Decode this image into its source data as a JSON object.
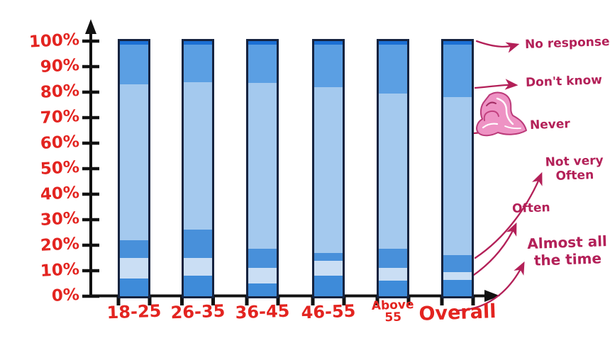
{
  "page": {
    "background": "#ffffff"
  },
  "chart_data": {
    "type": "stacked-bar",
    "title": "",
    "xlabel": "",
    "ylabel": "",
    "categories": [
      "18-25",
      "26-35",
      "36-45",
      "46-55",
      "Above 55",
      "Overall"
    ],
    "x_tick_label_lines": [
      [
        "18-25"
      ],
      [
        "26-35"
      ],
      [
        "36-45"
      ],
      [
        "46-55"
      ],
      [
        "Above",
        "55"
      ],
      [
        "Overall"
      ]
    ],
    "x_tick_label_style": [
      "normal",
      "normal",
      "normal",
      "normal",
      "small",
      "big"
    ],
    "ylim": [
      0,
      100
    ],
    "y_tick_labels": [
      "0%",
      "10%",
      "20%",
      "30%",
      "40%",
      "50%",
      "60%",
      "70%",
      "80%",
      "90%",
      "100%"
    ],
    "grid": false,
    "legend_position": "right-annotations",
    "series": [
      {
        "name": "Almost all the time",
        "color": "#3e8bd9",
        "values": [
          7,
          8,
          5,
          8,
          6,
          6.5
        ]
      },
      {
        "name": "Often",
        "color": "#cadef4",
        "values": [
          8,
          7,
          6,
          6,
          5,
          3
        ]
      },
      {
        "name": "Not very Often",
        "color": "#4890da",
        "values": [
          7,
          11,
          7.5,
          3,
          7.5,
          6.5
        ]
      },
      {
        "name": "Never",
        "color": "#a4c9ee",
        "values": [
          61,
          58,
          65,
          65,
          61,
          62
        ]
      },
      {
        "name": "Don't know",
        "color": "#5b9fe3",
        "values": [
          15.5,
          14.5,
          15,
          16.5,
          19,
          20.5
        ]
      },
      {
        "name": "No response",
        "color": "#1b6fd4",
        "values": [
          1.5,
          1.5,
          1.5,
          1.5,
          1.5,
          1.5
        ]
      }
    ],
    "bar_outline_color": "#16233f",
    "axis_color": "#111111",
    "tick_label_color": "#e32420"
  },
  "annotations": {
    "color": "#b32058",
    "labels": [
      {
        "id": "no-response",
        "lines": [
          "No response"
        ]
      },
      {
        "id": "dont-know",
        "lines": [
          "Don't know"
        ]
      },
      {
        "id": "never",
        "lines": [
          "Never"
        ]
      },
      {
        "id": "not-very-often",
        "lines": [
          "Not very",
          "Often"
        ]
      },
      {
        "id": "often",
        "lines": [
          "Often"
        ]
      },
      {
        "id": "almost-all-the-time",
        "lines": [
          "Almost all",
          "the time"
        ]
      }
    ]
  },
  "illustration": {
    "name": "worried-person",
    "fill": "#ee93c4",
    "stroke": "#bb3a79"
  }
}
